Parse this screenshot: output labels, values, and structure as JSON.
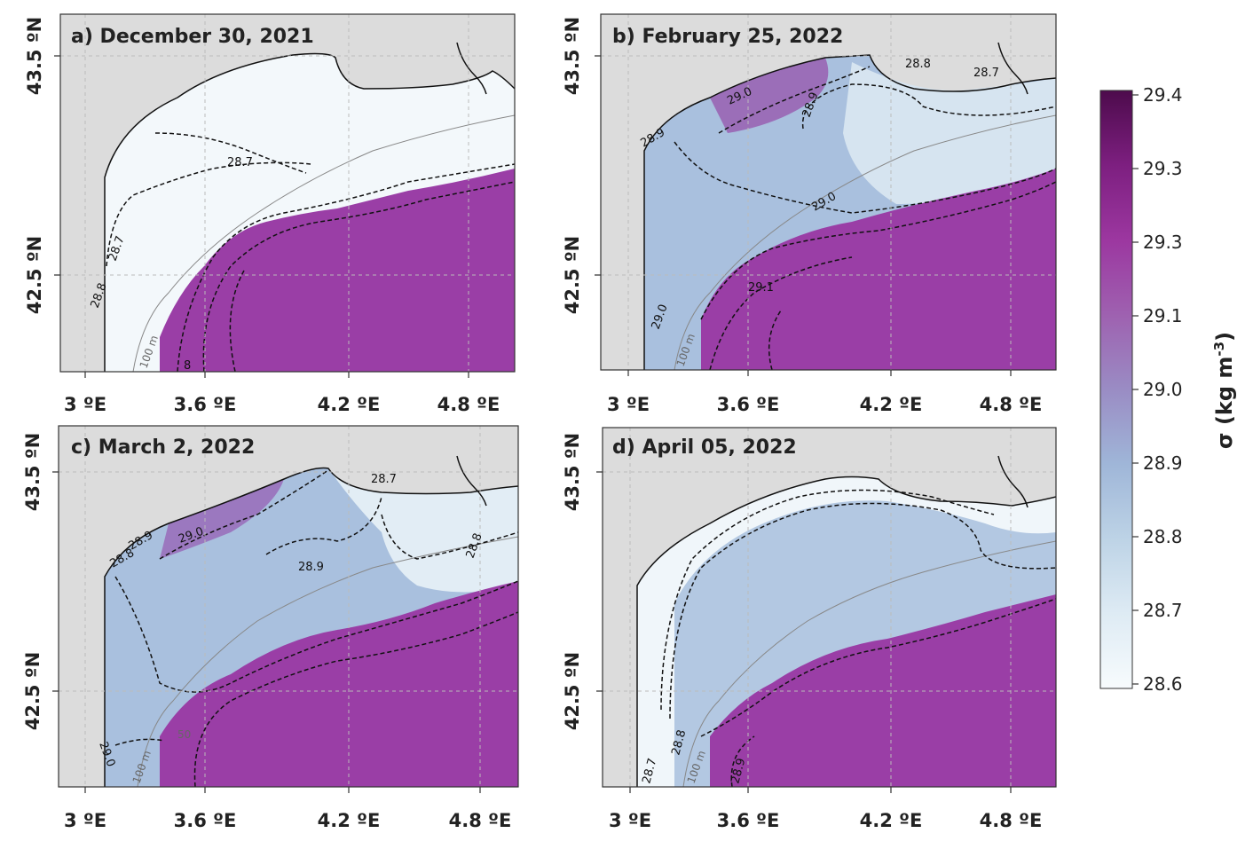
{
  "panels": [
    {
      "title": "a) December 30, 2021",
      "contours": [
        "28.7",
        "28.7",
        "28.8",
        "8"
      ],
      "depth_labels": [
        "100 m"
      ]
    },
    {
      "title": "b) February 25, 2022",
      "contours": [
        "28.8",
        "28.7",
        "29.0",
        "28.9",
        "28.9",
        "29.0",
        "29.1",
        "29.0"
      ],
      "depth_labels": [
        "100 m"
      ]
    },
    {
      "title": "c) March 2, 2022",
      "contours": [
        "28.7",
        "28.8",
        "28.9",
        "29.0",
        "28.8",
        "28.9",
        "29.0"
      ],
      "depth_labels": [
        "100 m",
        "50"
      ]
    },
    {
      "title": "d) April 05, 2022",
      "contours": [
        "28.7",
        "28.8",
        "28.9"
      ],
      "depth_labels": [
        "100 m"
      ]
    }
  ],
  "x_ticks": [
    "3 ºE",
    "3.6 ºE",
    "4.2 ºE",
    "4.8 ºE"
  ],
  "y_ticks": [
    "43.5 ºN",
    "42.5 ºN"
  ],
  "colorbar": {
    "ticks": [
      "29.4",
      "29.3",
      "29.3",
      "29.1",
      "29.0",
      "28.9",
      "28.8",
      "28.7",
      "28.6"
    ],
    "colors": [
      "#4d0b4c",
      "#7d1f80",
      "#9c37a0",
      "#9e61b0",
      "#9a8cc4",
      "#9fb6d8",
      "#bdd3e6",
      "#deebf4",
      "#f7fbfd"
    ]
  },
  "colors": {
    "land": "#dcdcdc",
    "dense": "#9a3ea6",
    "light": "#f3f8fb",
    "mid": "#a9c0de"
  }
}
